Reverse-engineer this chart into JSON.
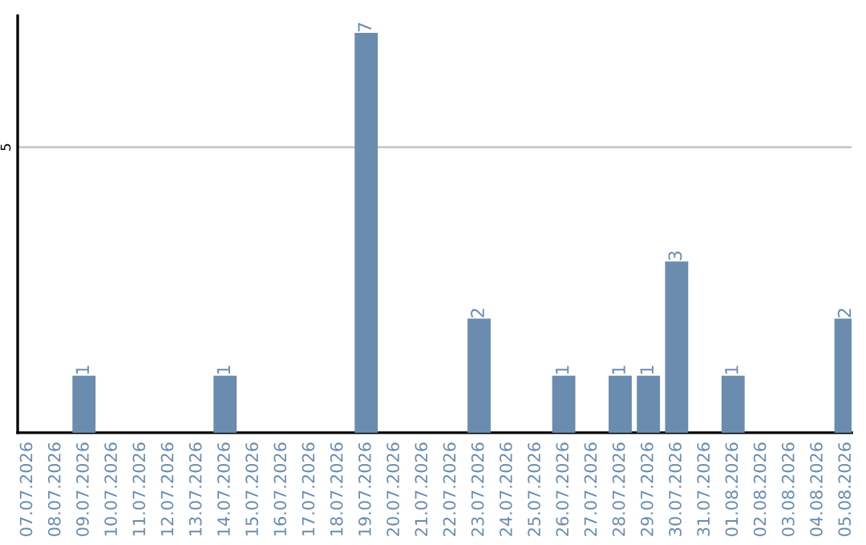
{
  "chart_data": {
    "type": "bar",
    "categories": [
      "07.07.2026",
      "08.07.2026",
      "09.07.2026",
      "10.07.2026",
      "11.07.2026",
      "12.07.2026",
      "13.07.2026",
      "14.07.2026",
      "15.07.2026",
      "16.07.2026",
      "17.07.2026",
      "18.07.2026",
      "19.07.2026",
      "20.07.2026",
      "21.07.2026",
      "22.07.2026",
      "23.07.2026",
      "24.07.2026",
      "25.07.2026",
      "26.07.2026",
      "27.07.2026",
      "28.07.2026",
      "29.07.2026",
      "30.07.2026",
      "31.07.2026",
      "01.08.2026",
      "02.08.2026",
      "03.08.2026",
      "04.08.2026",
      "05.08.2026"
    ],
    "values": [
      0,
      0,
      1,
      0,
      0,
      0,
      0,
      1,
      0,
      0,
      0,
      0,
      7,
      0,
      0,
      0,
      2,
      0,
      0,
      1,
      0,
      1,
      1,
      3,
      0,
      1,
      0,
      0,
      0,
      2
    ],
    "value_labels": [
      null,
      null,
      "1",
      null,
      null,
      null,
      null,
      "1",
      null,
      null,
      null,
      null,
      "7",
      null,
      null,
      null,
      "2",
      null,
      null,
      "1",
      null,
      "1",
      "1",
      "3",
      null,
      "1",
      null,
      null,
      null,
      "2"
    ],
    "color": "#6a8caf",
    "ylim": [
      0,
      7.3
    ],
    "yticks": [
      5
    ],
    "grid": "y",
    "legend": false
  }
}
